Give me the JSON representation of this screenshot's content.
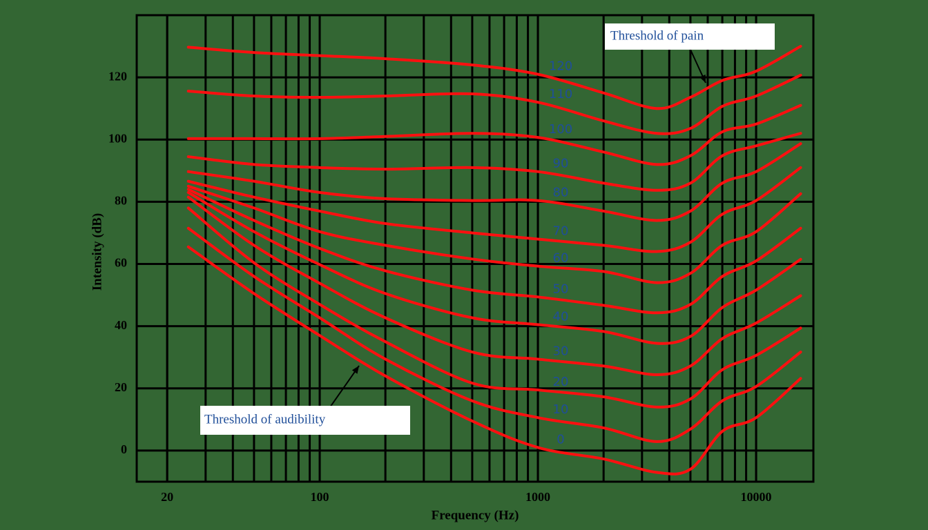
{
  "chart_data": {
    "type": "line",
    "x_label": "Frequency (Hz)",
    "y_label": "Intensity (dB)",
    "x": [
      25,
      50,
      100,
      200,
      500,
      1000,
      2000,
      3500,
      5000,
      7000,
      10000,
      16000
    ],
    "xlim": [
      14.5,
      18300
    ],
    "xticks": [
      20,
      100,
      1000,
      10000
    ],
    "x_log": true,
    "minor_grid": true,
    "ylim": [
      -10,
      140
    ],
    "yticks": [
      0,
      20,
      40,
      60,
      80,
      100,
      120
    ],
    "grid": true,
    "line_color": "#ff1010",
    "label_color": "#1f4e99",
    "background": "#336633",
    "series": [
      {
        "name": "120",
        "values": [
          129.7,
          128,
          127,
          126,
          124,
          121,
          115,
          110,
          113.6,
          119,
          122,
          130
        ]
      },
      {
        "name": "110",
        "values": [
          115.6,
          114,
          113.6,
          114,
          114.7,
          112,
          106,
          102,
          103.6,
          110.7,
          114,
          120.7
        ]
      },
      {
        "name": "100",
        "values": [
          100.3,
          100.3,
          100.3,
          101,
          102,
          100.7,
          96,
          92,
          94.8,
          102.5,
          105,
          111
        ]
      },
      {
        "name": "90",
        "values": [
          94.5,
          92,
          91,
          90.5,
          91,
          89.7,
          86,
          83.7,
          86,
          94.8,
          98,
          102
        ]
      },
      {
        "name": "80",
        "values": [
          89.7,
          86.6,
          83,
          81,
          80.4,
          80.4,
          77,
          74,
          77,
          86,
          89.7,
          98.7
        ]
      },
      {
        "name": "70",
        "values": [
          86.6,
          81.5,
          77,
          73,
          70,
          68,
          66,
          64,
          67,
          76,
          80.4,
          91
        ]
      },
      {
        "name": "60",
        "values": [
          85,
          78,
          70.4,
          66,
          61.6,
          59.3,
          57.6,
          54,
          57,
          66,
          70.4,
          82.6
        ]
      },
      {
        "name": "50",
        "values": [
          84,
          74,
          65,
          57.8,
          51.6,
          49.4,
          46.7,
          44.3,
          47,
          56,
          61,
          71.5
        ]
      },
      {
        "name": "40",
        "values": [
          83,
          70.4,
          59.8,
          50.5,
          42.7,
          40.5,
          38.3,
          34.5,
          36.7,
          46,
          51.6,
          61.5
        ]
      },
      {
        "name": "30",
        "values": [
          81.5,
          66,
          53.8,
          42.7,
          31.7,
          29.4,
          27.2,
          24.4,
          27.2,
          36,
          41,
          49.8
        ]
      },
      {
        "name": "20",
        "values": [
          78,
          60.4,
          47,
          35,
          21.7,
          19.5,
          17.3,
          14,
          16.6,
          26,
          30.6,
          39.4
        ]
      },
      {
        "name": "10",
        "values": [
          71.5,
          56,
          42.7,
          29.4,
          16,
          10.6,
          7.3,
          2.9,
          6.9,
          16,
          20.6,
          31.7
        ]
      },
      {
        "name": "0",
        "values": [
          65.5,
          50.5,
          37,
          24,
          9.5,
          1,
          -2.7,
          -7,
          -6,
          6.2,
          10.6,
          23.2
        ]
      }
    ],
    "annotations": [
      "Threshold of pain",
      "Threshold of audibility"
    ]
  }
}
